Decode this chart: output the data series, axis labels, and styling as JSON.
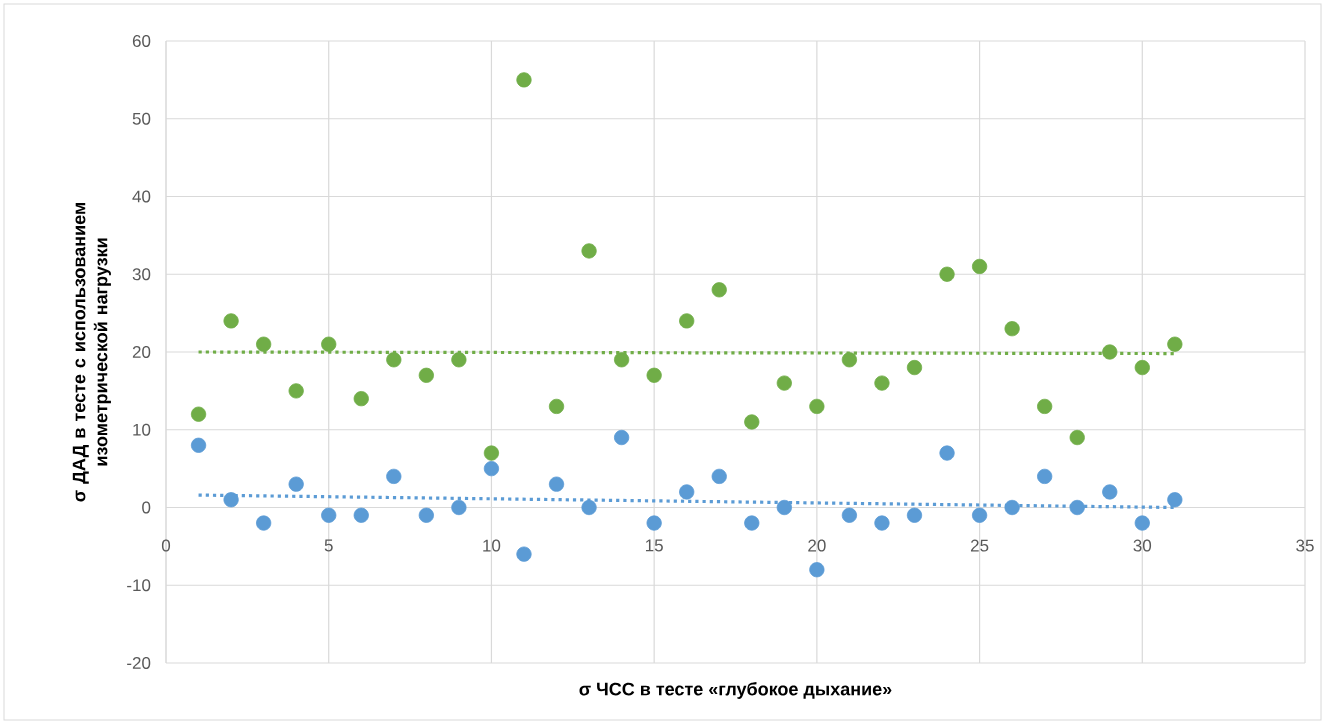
{
  "chart_data": {
    "type": "scatter",
    "xlabel": "σ ЧСС в тесте «глубокое дыхание»",
    "ylabel": "σ ДАД в тесте с использованием изометрической нагрузки",
    "xlim": [
      0,
      35
    ],
    "xticks": [
      0,
      5,
      10,
      15,
      20,
      25,
      30,
      35
    ],
    "ylim": [
      -20,
      60
    ],
    "yticks": [
      -20,
      -10,
      0,
      10,
      20,
      30,
      40,
      50,
      60
    ],
    "grid": true,
    "series": [
      {
        "color": "#70ad47",
        "marker": "circle",
        "x": [
          1,
          2,
          3,
          4,
          5,
          6,
          7,
          8,
          9,
          10,
          11,
          12,
          13,
          14,
          15,
          16,
          17,
          18,
          19,
          20,
          21,
          22,
          23,
          24,
          25,
          26,
          27,
          28,
          29,
          30,
          31
        ],
        "values": [
          12,
          24,
          21,
          15,
          21,
          14,
          19,
          17,
          19,
          7,
          55,
          13,
          33,
          19,
          17,
          24,
          28,
          11,
          16,
          13,
          19,
          16,
          18,
          30,
          31,
          23,
          13,
          9,
          20,
          18,
          21
        ]
      },
      {
        "color": "#5b9bd5",
        "marker": "circle",
        "x": [
          1,
          2,
          3,
          4,
          5,
          6,
          7,
          8,
          9,
          10,
          11,
          12,
          13,
          14,
          15,
          16,
          17,
          18,
          19,
          20,
          21,
          22,
          23,
          24,
          25,
          26,
          27,
          28,
          29,
          30,
          31
        ],
        "values": [
          8,
          1,
          -2,
          3,
          -1,
          -1,
          4,
          -1,
          0,
          5,
          -6,
          3,
          0,
          9,
          -2,
          2,
          4,
          -2,
          0,
          -8,
          -1,
          -2,
          -1,
          7,
          -1,
          0,
          4,
          0,
          2,
          -2,
          1
        ]
      },
      {
        "type": "line",
        "color": "#70ad47",
        "line_style": "dotted",
        "marker": "none",
        "x": [
          1,
          31
        ],
        "values": [
          20,
          19.8
        ]
      },
      {
        "type": "line",
        "color": "#5b9bd5",
        "line_style": "dotted",
        "marker": "none",
        "x": [
          1,
          31
        ],
        "values": [
          1.6,
          0
        ]
      }
    ]
  }
}
